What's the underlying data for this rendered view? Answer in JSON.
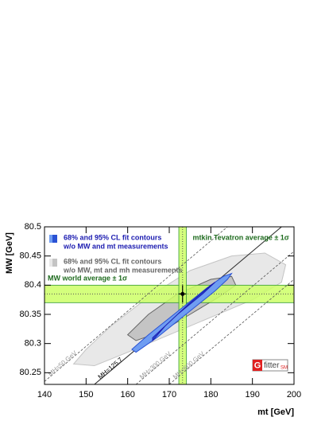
{
  "chart_data": {
    "type": "contour",
    "xlabel": "mt [GeV]",
    "ylabel": "MW [GeV]",
    "xlim": [
      140,
      200
    ],
    "xticks": [
      140,
      150,
      160,
      170,
      180,
      190,
      200
    ],
    "ylim": [
      80.23,
      80.5
    ],
    "yticks": [
      80.25,
      80.3,
      80.35,
      80.4,
      80.45,
      80.5
    ],
    "series": [
      {
        "name": [
          "68% and 95% CL fit contours",
          "w/o MW, mt and mh measurements"
        ],
        "color": "#c4c4c4",
        "light": "#e8e8e8",
        "text_color": "#666666",
        "contours": [
          {
            "x": [
              147,
              150,
              156,
              165,
              175,
              185,
              193,
              198,
              197,
              190,
              180,
              170,
              160,
              152
            ],
            "y": [
              80.265,
              80.29,
              80.33,
              80.38,
              80.425,
              80.45,
              80.455,
              80.435,
              80.405,
              80.375,
              80.345,
              80.315,
              80.285,
              80.262
            ]
          },
          {
            "x": [
              160,
              165,
              172,
              180,
              185,
              186,
              182,
              175,
              168,
              162
            ],
            "y": [
              80.315,
              80.35,
              80.385,
              80.41,
              80.415,
              80.4,
              80.38,
              80.35,
              80.32,
              80.305
            ]
          }
        ]
      },
      {
        "name": [
          "68% and 95% CL fit contours",
          "w/o MW and mt measurements"
        ],
        "color": "#2a52d4",
        "light": "#6f9df2",
        "text_color": "#1b1bb0",
        "contours": [
          {
            "x": [
              161,
              165,
              172,
              179,
              183,
              185,
              184,
              181,
              174,
              167,
              162
            ],
            "y": [
              80.29,
              80.315,
              80.355,
              80.395,
              80.415,
              80.42,
              80.41,
              80.39,
              80.35,
              80.31,
              80.285
            ]
          },
          {
            "x": [
              166,
              172,
              178,
              181,
              180,
              175,
              169,
              166
            ],
            "y": [
              80.31,
              80.35,
              80.385,
              80.405,
              80.4,
              80.37,
              80.33,
              80.305
            ]
          }
        ]
      }
    ],
    "bands": [
      {
        "label": "MW world average ± 1σ",
        "axis": "y",
        "center": 80.385,
        "error": 0.015,
        "color": "#ccff66",
        "text_color": "#1e6b1e"
      },
      {
        "label": "mtkin Tevatron average ± 1σ",
        "axis": "x",
        "center": 173.2,
        "error": 0.9,
        "color": "#ccff66",
        "text_color": "#1e6b1e"
      }
    ],
    "lines": [
      {
        "label": "MH=50 GeV",
        "x": [
          140,
          184
        ],
        "y": [
          80.235,
          80.5
        ],
        "dashed": true
      },
      {
        "label": "MH=125.7",
        "x": [
          152,
          197
        ],
        "y": [
          80.23,
          80.5
        ],
        "dashed": false
      },
      {
        "label": "MH=300 GeV",
        "x": [
          162,
          200
        ],
        "y": [
          80.23,
          80.458
        ],
        "dashed": true
      },
      {
        "label": "MH=600 GeV",
        "x": [
          170,
          200
        ],
        "y": [
          80.23,
          80.41
        ],
        "dashed": true
      }
    ],
    "point": {
      "x": 173.2,
      "y": 80.385,
      "xerr": 0.9,
      "yerr": 0.015
    },
    "logo": [
      "G",
      "fitter",
      "SM"
    ]
  }
}
